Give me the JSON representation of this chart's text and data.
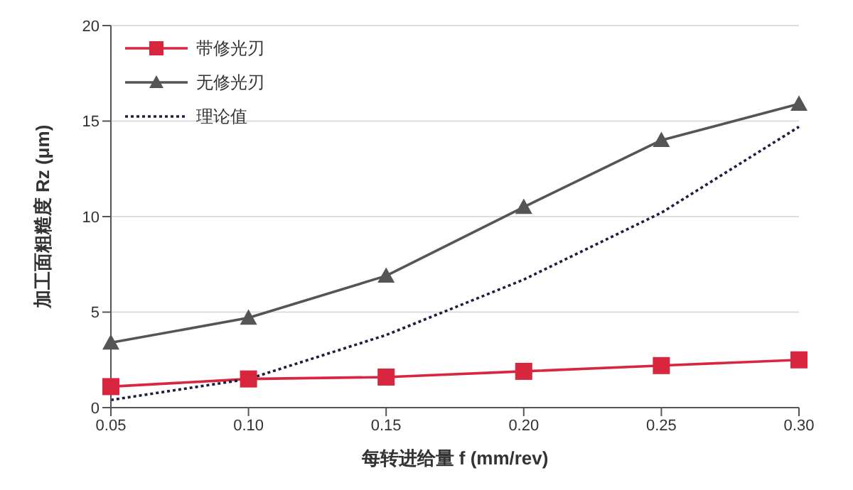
{
  "chart_data": {
    "type": "line",
    "xlabel": "每转进给量 f (mm/rev)",
    "ylabel": "加工面粗糙度 Rz (μm)",
    "categories": [
      "0.05",
      "0.10",
      "0.15",
      "0.20",
      "0.25",
      "0.30"
    ],
    "series": [
      {
        "name": "带修光刃",
        "color": "#d9263f",
        "marker": "square",
        "line_style": "solid",
        "values": [
          1.1,
          1.5,
          1.6,
          1.9,
          2.2,
          2.5
        ]
      },
      {
        "name": "无修光刃",
        "color": "#555555",
        "marker": "triangle",
        "line_style": "solid",
        "values": [
          3.4,
          4.7,
          6.9,
          10.5,
          14.0,
          15.9
        ]
      },
      {
        "name": "理论值",
        "color": "#1a2040",
        "marker": "none",
        "line_style": "dotted",
        "values": [
          0.4,
          1.5,
          3.8,
          6.7,
          10.2,
          14.7
        ]
      }
    ],
    "ylim": [
      0,
      20
    ],
    "yticks": [
      0,
      5,
      10,
      15,
      20
    ],
    "grid": "y",
    "legend": "top left"
  }
}
